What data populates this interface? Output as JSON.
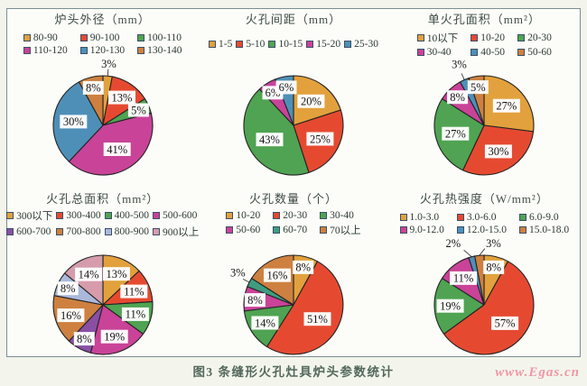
{
  "page": {
    "caption": "图3 条缝形火孔灶具炉头参数统计",
    "watermark": "www.Egas.cn"
  },
  "palette": {
    "orange": "#E2A13C",
    "red": "#E54A31",
    "green": "#4FA352",
    "magenta": "#C94398",
    "blue": "#4E8FB8",
    "brown_orange": "#CE8040",
    "purple": "#8A4FA5",
    "light_blue": "#AAB9DB",
    "pink": "#D69CAB",
    "teal": "#3E9C80",
    "frame_border": "#7d8e94",
    "caption_color": "#53685c",
    "watermark_color": "#f295a5"
  },
  "chart_data": [
    {
      "type": "pie",
      "title": "炉头外径（mm）",
      "legend_columns": 3,
      "slices": [
        {
          "label": "80-90",
          "value": 3,
          "color": "#E2A13C"
        },
        {
          "label": "90-100",
          "value": 13,
          "color": "#E54A31"
        },
        {
          "label": "100-110",
          "value": 5,
          "color": "#4FA352"
        },
        {
          "label": "110-120",
          "value": 41,
          "color": "#C94398"
        },
        {
          "label": "120-130",
          "value": 30,
          "color": "#4E8FB8"
        },
        {
          "label": "130-140",
          "value": 8,
          "color": "#CE8040"
        }
      ]
    },
    {
      "type": "pie",
      "title": "火孔间距（mm）",
      "legend_columns": 5,
      "slices": [
        {
          "label": "1-5",
          "value": 20,
          "color": "#E2A13C"
        },
        {
          "label": "5-10",
          "value": 25,
          "color": "#E54A31"
        },
        {
          "label": "10-15",
          "value": 43,
          "color": "#4FA352"
        },
        {
          "label": "15-20",
          "value": 6,
          "color": "#C94398"
        },
        {
          "label": "25-30",
          "value": 6,
          "color": "#4E8FB8"
        }
      ]
    },
    {
      "type": "pie",
      "title": "单火孔面积（mm²）",
      "legend_columns": 3,
      "slices": [
        {
          "label": "10以下",
          "value": 27,
          "color": "#E2A13C"
        },
        {
          "label": "10-20",
          "value": 30,
          "color": "#E54A31"
        },
        {
          "label": "20-30",
          "value": 27,
          "color": "#4FA352"
        },
        {
          "label": "30-40",
          "value": 8,
          "color": "#C94398"
        },
        {
          "label": "40-50",
          "value": 3,
          "color": "#4E8FB8"
        },
        {
          "label": "50-60",
          "value": 5,
          "color": "#CE8040"
        }
      ]
    },
    {
      "type": "pie",
      "title": "火孔总面积（mm²）",
      "legend_columns": 4,
      "slices": [
        {
          "label": "300以下",
          "value": 13,
          "color": "#E2A13C"
        },
        {
          "label": "300-400",
          "value": 11,
          "color": "#E54A31"
        },
        {
          "label": "400-500",
          "value": 11,
          "color": "#4FA352"
        },
        {
          "label": "500-600",
          "value": 19,
          "color": "#C94398"
        },
        {
          "label": "600-700",
          "value": 8,
          "color": "#8A4FA5"
        },
        {
          "label": "700-800",
          "value": 16,
          "color": "#CE8040"
        },
        {
          "label": "800-900",
          "value": 8,
          "color": "#AAB9DB"
        },
        {
          "label": "900以上",
          "value": 14,
          "color": "#D69CAB"
        }
      ]
    },
    {
      "type": "pie",
      "title": "火孔数量（个）",
      "legend_columns": 3,
      "slices": [
        {
          "label": "10-20",
          "value": 8,
          "color": "#E2A13C"
        },
        {
          "label": "20-30",
          "value": 51,
          "color": "#E54A31"
        },
        {
          "label": "30-40",
          "value": 14,
          "color": "#4FA352"
        },
        {
          "label": "50-60",
          "value": 8,
          "color": "#C94398"
        },
        {
          "label": "60-70",
          "value": 3,
          "color": "#3E9C80"
        },
        {
          "label": "70以上",
          "value": 16,
          "color": "#CE8040"
        }
      ]
    },
    {
      "type": "pie",
      "title": "火孔热强度（W/mm²）",
      "legend_columns": 3,
      "slices": [
        {
          "label": "1.0-3.0",
          "value": 8,
          "color": "#E2A13C"
        },
        {
          "label": "3.0-6.0",
          "value": 57,
          "color": "#E54A31"
        },
        {
          "label": "6.0-9.0",
          "value": 19,
          "color": "#4FA352"
        },
        {
          "label": "9.0-12.0",
          "value": 11,
          "color": "#C94398"
        },
        {
          "label": "12.0-15.0",
          "value": 2,
          "color": "#4E8FB8"
        },
        {
          "label": "15.0-18.0",
          "value": 3,
          "color": "#CE8040"
        }
      ]
    }
  ]
}
